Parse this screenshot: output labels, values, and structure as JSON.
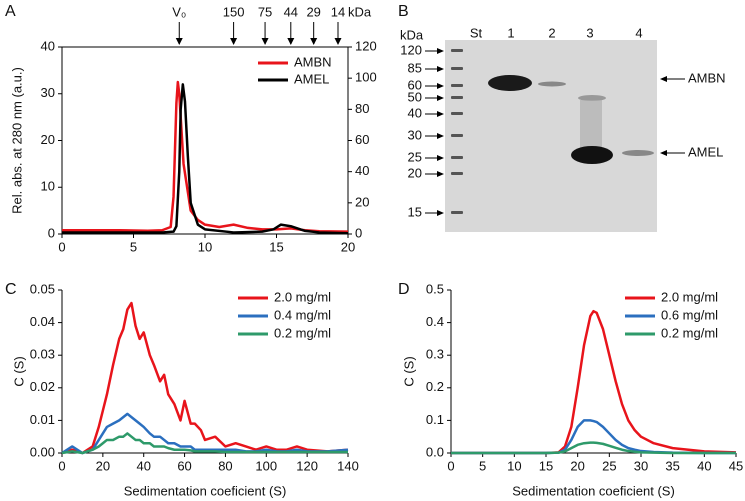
{
  "panels": [
    "A",
    "B",
    "C",
    "D"
  ],
  "chart_data": [
    {
      "type": "line",
      "frame": true,
      "ylabel": "Rel. abs. at 280 nm (a.u.)",
      "xlim": [
        0,
        20
      ],
      "xticks": [
        0,
        5,
        10,
        15,
        20
      ],
      "ylim": [
        0,
        40
      ],
      "yticks": [
        0,
        10,
        20,
        30,
        40
      ],
      "y2lim": [
        0,
        120
      ],
      "y2ticks": [
        0,
        20,
        40,
        60,
        80,
        100,
        120
      ],
      "markers": [
        {
          "value": 8.2,
          "label": "V₀"
        },
        {
          "value": 12,
          "label": "150"
        },
        {
          "value": 14.2,
          "label": "75"
        },
        {
          "value": 16,
          "label": "44"
        },
        {
          "value": 17.6,
          "label": "29"
        },
        {
          "value": 19.3,
          "label": "14"
        }
      ],
      "marker_unit": "kDa",
      "series": [
        {
          "name": "AMBN",
          "color": "#e8141b",
          "x": [
            0,
            2,
            4,
            6,
            7,
            7.6,
            7.8,
            8,
            8.1,
            8.2,
            8.5,
            9,
            9.5,
            10,
            11,
            12,
            13,
            14,
            15,
            16,
            17,
            18,
            20
          ],
          "values": [
            0.8,
            0.8,
            0.8,
            0.7,
            0.8,
            1.5,
            8,
            28,
            32.5,
            30,
            15,
            5,
            3,
            2,
            1.5,
            2,
            1.3,
            1,
            1,
            1.2,
            0.8,
            0.6,
            0.5
          ]
        },
        {
          "name": "AMEL",
          "color": "#000000",
          "axis": "y2",
          "x": [
            0,
            4,
            7,
            7.8,
            8,
            8.2,
            8.3,
            8.45,
            8.6,
            8.8,
            9,
            9.5,
            10,
            12,
            14,
            14.8,
            15.3,
            16,
            17,
            18,
            20
          ],
          "values": [
            1,
            1,
            1,
            1.5,
            5,
            40,
            80,
            96,
            85,
            50,
            20,
            6,
            3,
            1,
            1.5,
            3,
            6,
            5,
            2,
            1,
            0.5
          ]
        }
      ]
    },
    {
      "type": "line",
      "frame": false,
      "xlabel": "Sedimentation coeficient (S)",
      "ylabel": "C (S)",
      "xlim": [
        0,
        140
      ],
      "xticks": [
        0,
        20,
        40,
        60,
        80,
        100,
        120,
        140
      ],
      "ylim": [
        0,
        0.05
      ],
      "yticks": [
        {
          "value": 0,
          "label": "0.00"
        },
        0.01,
        0.02,
        0.03,
        0.04,
        0.05
      ],
      "x": [
        0,
        5,
        10,
        15,
        18,
        20,
        22,
        25,
        28,
        30,
        32,
        34,
        36,
        38,
        40,
        43,
        45,
        48,
        50,
        52,
        55,
        58,
        60,
        63,
        65,
        68,
        70,
        75,
        80,
        85,
        90,
        95,
        100,
        105,
        110,
        115,
        120,
        130,
        140
      ],
      "series": [
        {
          "name": "2.0 mg/ml",
          "color": "#e8141b",
          "values": [
            0,
            0.001,
            0,
            0.002,
            0.008,
            0.013,
            0.018,
            0.027,
            0.035,
            0.038,
            0.044,
            0.046,
            0.039,
            0.035,
            0.037,
            0.03,
            0.027,
            0.022,
            0.024,
            0.018,
            0.015,
            0.01,
            0.016,
            0.009,
            0.009,
            0.007,
            0.004,
            0.005,
            0.002,
            0.003,
            0.002,
            0.001,
            0.002,
            0.001,
            0.001,
            0.002,
            0.001,
            0.0005,
            0.001
          ]
        },
        {
          "name": "0.4 mg/ml",
          "color": "#2b6fbf",
          "values": [
            0,
            0.002,
            0,
            0.001,
            0.004,
            0.006,
            0.008,
            0.009,
            0.01,
            0.011,
            0.012,
            0.011,
            0.01,
            0.009,
            0.008,
            0.006,
            0.005,
            0.005,
            0.004,
            0.003,
            0.003,
            0.002,
            0.002,
            0.002,
            0.001,
            0.001,
            0.001,
            0.001,
            0.001,
            0.001,
            0.0005,
            0.0005,
            0.001,
            0.0005,
            0.0005,
            0.001,
            0.0005,
            0.0005,
            0.001
          ]
        },
        {
          "name": "0.2 mg/ml",
          "color": "#2e9a6a",
          "values": [
            0,
            0.0005,
            0,
            0.001,
            0.002,
            0.003,
            0.004,
            0.004,
            0.005,
            0.005,
            0.006,
            0.005,
            0.004,
            0.004,
            0.003,
            0.003,
            0.002,
            0.002,
            0.002,
            0.0015,
            0.001,
            0.001,
            0.001,
            0.0008,
            0.0005,
            0.0005,
            0.0005,
            0.0005,
            0.0003,
            0.0003,
            0.0003,
            0.0003,
            0.0003,
            0.0003,
            0.0003,
            0.0003,
            0.0003,
            0.0003,
            0.0003
          ]
        }
      ]
    },
    {
      "type": "line",
      "frame": false,
      "xlabel": "Sedimentation coeficient (S)",
      "ylabel": "C (S)",
      "xlim": [
        0,
        45
      ],
      "xticks": [
        0,
        5,
        10,
        15,
        20,
        25,
        30,
        35,
        40,
        45
      ],
      "ylim": [
        0,
        0.5
      ],
      "yticks": [
        {
          "value": 0,
          "label": "0.0"
        },
        0.1,
        0.2,
        0.3,
        0.4,
        0.5
      ],
      "x": [
        0,
        5,
        10,
        15,
        17,
        18,
        19,
        20,
        21,
        22,
        22.5,
        23,
        24,
        25,
        26,
        27,
        28,
        29,
        30,
        32,
        35,
        40,
        45
      ],
      "series": [
        {
          "name": "2.0 mg/ml",
          "color": "#e8141b",
          "values": [
            0,
            0,
            0,
            0,
            0.002,
            0.02,
            0.08,
            0.2,
            0.33,
            0.42,
            0.435,
            0.43,
            0.38,
            0.3,
            0.22,
            0.15,
            0.1,
            0.07,
            0.05,
            0.03,
            0.015,
            0.005,
            0.002
          ]
        },
        {
          "name": "0.6 mg/ml",
          "color": "#2b6fbf",
          "values": [
            0,
            0,
            0,
            0,
            0.001,
            0.01,
            0.04,
            0.08,
            0.1,
            0.1,
            0.098,
            0.095,
            0.08,
            0.06,
            0.04,
            0.025,
            0.015,
            0.01,
            0.006,
            0.003,
            0.001,
            0,
            0
          ]
        },
        {
          "name": "0.2 mg/ml",
          "color": "#2e9a6a",
          "values": [
            0,
            0,
            0,
            0,
            0.001,
            0.005,
            0.015,
            0.025,
            0.03,
            0.032,
            0.032,
            0.031,
            0.028,
            0.022,
            0.016,
            0.01,
            0.006,
            0.004,
            0.002,
            0.001,
            0,
            0,
            0
          ]
        }
      ]
    }
  ],
  "gel": {
    "unit": "kDa",
    "markers": [
      "120",
      "85",
      "60",
      "50",
      "40",
      "30",
      "25",
      "20",
      "15"
    ],
    "lanes": [
      "St",
      "1",
      "2",
      "3",
      "4"
    ],
    "bands": [
      "AMBN",
      "AMEL"
    ]
  }
}
